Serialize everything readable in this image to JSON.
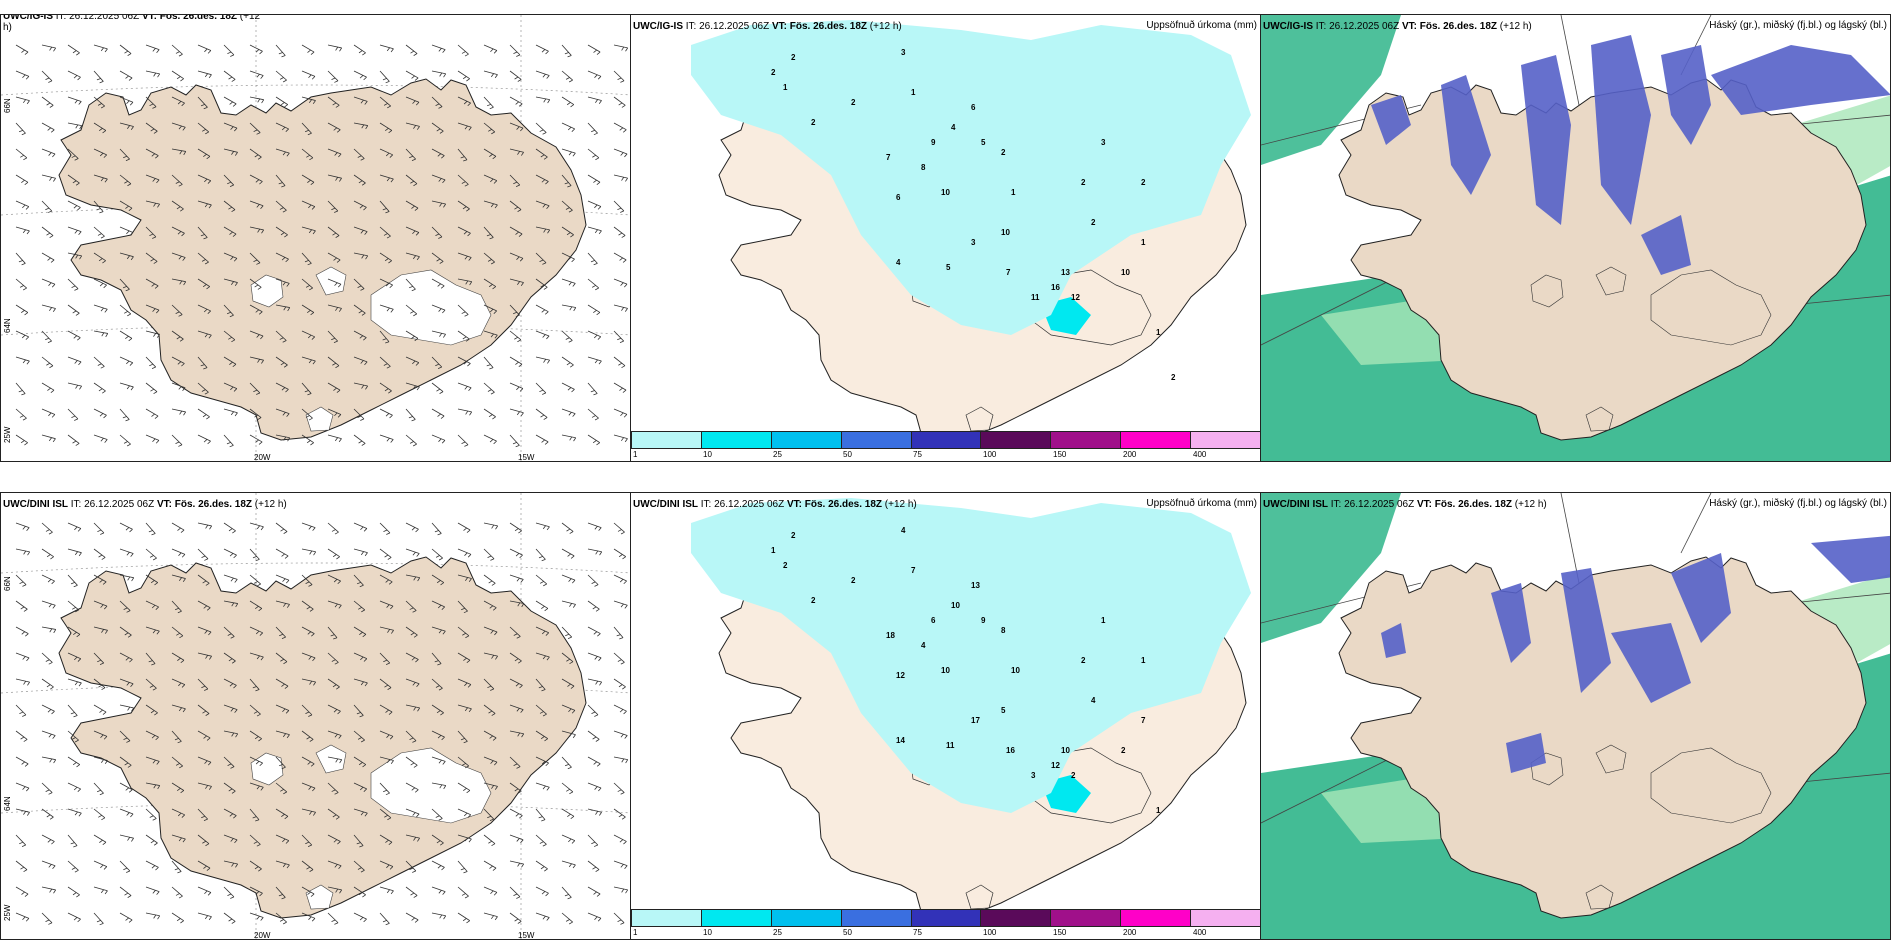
{
  "rows": [
    {
      "panels": [
        {
          "model": "UWC/IG-IS",
          "it": "IT: 26.12.2025 06Z",
          "vt": "VT: Fös. 26.des. 18Z",
          "lead": "(+12",
          "lead2": "h)",
          "right": ""
        },
        {
          "model": "UWC/IG-IS",
          "it": "IT: 26.12.2025 06Z",
          "vt": "VT: Fös. 26.des. 18Z",
          "lead": "(+12 h)",
          "right": "Uppsöfnuð úrkoma (mm)"
        },
        {
          "model": "UWC/IG-IS",
          "it": "IT: 26.12.2025 06Z",
          "vt": "VT: Fös. 26.des. 18Z",
          "lead": "(+12 h)",
          "right": "Háský (gr.), miðský (fj.bl.) og lágský (bl.)"
        }
      ]
    },
    {
      "panels": [
        {
          "model": "UWC/DINI ISL",
          "it": "IT: 26.12.2025 06Z",
          "vt": "VT: Fös. 26.des. 18Z",
          "lead": "(+12 h)",
          "right": ""
        },
        {
          "model": "UWC/DINI ISL",
          "it": "IT: 26.12.2025 06Z",
          "vt": "VT: Fös. 26.des. 18Z",
          "lead": "(+12 h)",
          "right": "Uppsöfnuð úrkoma (mm)"
        },
        {
          "model": "UWC/DINI ISL",
          "it": "IT: 26.12.2025 06Z",
          "vt": "VT: Fös. 26.des. 18Z",
          "lead": "(+12 h)",
          "right": "Háský (gr.), miðský (fj.bl.) og lágský (bl.)"
        }
      ]
    }
  ],
  "grid_labels": {
    "lon_a": "20W",
    "lon_b": "15W",
    "lon_c": "25W",
    "lat_a": "66N",
    "lat_b": "64N"
  },
  "precip_scale": {
    "ticks": [
      "1",
      "10",
      "25",
      "50",
      "75",
      "100",
      "150",
      "200",
      "400"
    ],
    "colors": [
      "#b8f7f7",
      "#00e8f0",
      "#00c0ee",
      "#3a6fe0",
      "#3232b8",
      "#5a0a5a",
      "#a0108a",
      "#ff00c8",
      "#f5b0f0",
      ""
    ]
  },
  "precip_values_top": [
    "2",
    "2",
    "1",
    "2",
    "2",
    "3",
    "1",
    "4",
    "6",
    "5",
    "2",
    "1",
    "10",
    "9",
    "8",
    "7",
    "6",
    "10",
    "3",
    "4",
    "5",
    "7",
    "13",
    "16",
    "11",
    "12",
    "10",
    "2",
    "3",
    "2",
    "2",
    "1",
    "1",
    "2"
  ],
  "precip_values_bottom": [
    "2",
    "1",
    "2",
    "2",
    "2",
    "4",
    "7",
    "10",
    "13",
    "9",
    "8",
    "10",
    "5",
    "6",
    "4",
    "18",
    "12",
    "10",
    "17",
    "14",
    "11",
    "16",
    "10",
    "12",
    "3",
    "2",
    "2",
    "2",
    "1",
    "1",
    "4",
    "7",
    "1"
  ],
  "colors": {
    "land": "#ead9c6",
    "land_light": "#f9ecdf",
    "cyan": "#b8f7f7",
    "high_cloud": "#5560c8",
    "low_cloud": "#2fb58a",
    "low_cloud_light": "#a8e6b8"
  }
}
